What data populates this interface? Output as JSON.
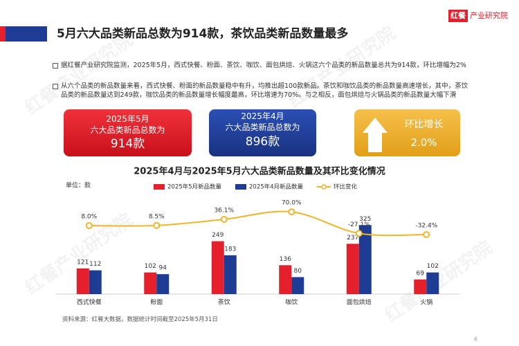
{
  "header": {
    "title": "5月六大品类新品总数为914款，茶饮品类新品数量最多",
    "logo_mark": "红餐",
    "logo_text": "产业研究院"
  },
  "bullets": [
    "据红餐产业研究院监测，2025年5月，西式快餐、粉面、茶饮、咖饮、面包烘焙、火锅这六个品类的新品数量总共为914款，环比增幅为2%",
    "从六个品类的新品数量来看，西式快餐、粉面的新品数量稳中有升，均推出超100款新品。茶饮和咖饮品类的新品数量高速增长，其中，茶饮品类的新品数量达到249款，咖饮品类的新品数量增长幅度最高，环比增速为70%。与之相反，面包烘焙与火锅品类的新品数量大幅下滑"
  ],
  "cards": [
    {
      "line1": "2025年5月",
      "line2": "六大品类新品总数为",
      "value": "914款"
    },
    {
      "line1": "2025年4月",
      "line2": "六大品类新品总数为",
      "value": "896款"
    },
    {
      "line1": "环比增长",
      "value": "2.0%"
    }
  ],
  "chart_data": {
    "type": "bar",
    "title": "2025年4月与2025年5月六大品类新品数量及其环比变化情况",
    "unit_label": "单位：款",
    "legend": "top",
    "categories": [
      "西式快餐",
      "粉面",
      "茶饮",
      "咖饮",
      "面包烘焙",
      "火锅"
    ],
    "ylim": [
      0,
      440
    ],
    "y2lim": [
      -300,
      120
    ],
    "series": [
      {
        "name": "2025年5月新品数量",
        "color": "#e3202b",
        "values": [
          121,
          102,
          249,
          136,
          237,
          69
        ]
      },
      {
        "name": "2025年4月新品数量",
        "color": "#1f3c94",
        "values": [
          112,
          94,
          183,
          80,
          325,
          102
        ]
      },
      {
        "name": "环比变化",
        "color": "#f0b429",
        "type": "line",
        "axis": "y2",
        "values": [
          8.0,
          8.5,
          36.1,
          70.0,
          -27.1,
          -32.4
        ],
        "value_labels": [
          "8.0%",
          "8.5%",
          "36.1%",
          "70.0%",
          "-27.1%",
          "-32.4%"
        ]
      }
    ]
  },
  "footnote": "资料来源：红餐大数据，数据统计时间截至2025年5月31日",
  "watermark": "红餐产业研究院",
  "page_number": "6"
}
